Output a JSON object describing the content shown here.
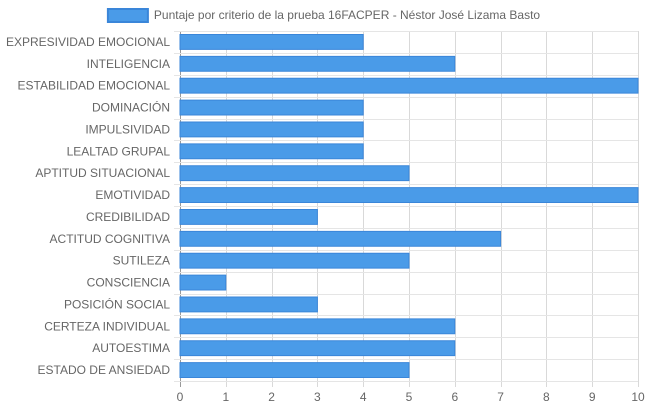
{
  "chart_data": {
    "type": "bar",
    "orientation": "horizontal",
    "categories": [
      "EXPRESIVIDAD EMOCIONAL",
      "INTELIGENCIA",
      "ESTABILIDAD EMOCIONAL",
      "DOMINACIÓN",
      "IMPULSIVIDAD",
      "LEALTAD GRUPAL",
      "APTITUD SITUACIONAL",
      "EMOTIVIDAD",
      "CREDIBILIDAD",
      "ACTITUD COGNITIVA",
      "SUTILEZA",
      "CONSCIENCIA",
      "POSICIÓN SOCIAL",
      "CERTEZA INDIVIDUAL",
      "AUTOESTIMA",
      "ESTADO DE ANSIEDAD"
    ],
    "series": [
      {
        "name": "Puntaje por criterio de la prueba 16FACPER - Néstor José Lizama Basto",
        "values": [
          4,
          6,
          10,
          4,
          4,
          4,
          5,
          10,
          3,
          7,
          5,
          1,
          3,
          6,
          6,
          5
        ],
        "color": "#4a9be8",
        "border_color": "#3a86d9"
      }
    ],
    "xlim": [
      0,
      10
    ],
    "x_ticks": [
      "0",
      "1",
      "2",
      "3",
      "4",
      "5",
      "6",
      "7",
      "8",
      "9",
      "10"
    ],
    "grid": true,
    "legend_position": "top"
  }
}
